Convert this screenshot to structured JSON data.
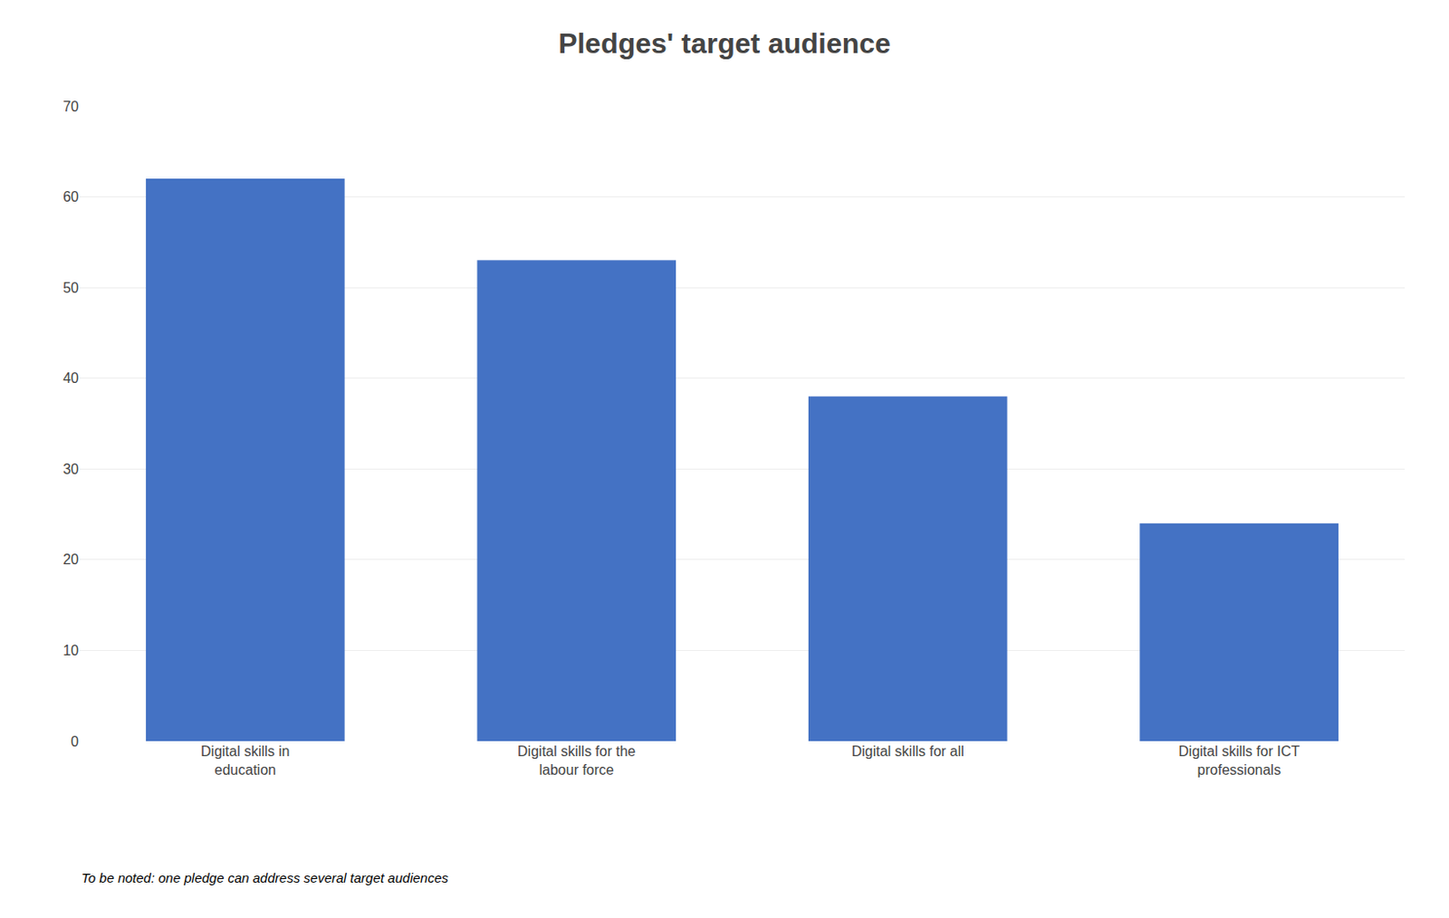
{
  "chart_data": {
    "type": "bar",
    "title": "Pledges' target audience",
    "categories": [
      "Digital skills in\neducation",
      "Digital skills for the\nlabour force",
      "Digital skills for all",
      "Digital skills for ICT\nprofessionals"
    ],
    "values": [
      62,
      53,
      38,
      24
    ],
    "color": "#4472C4",
    "ylim": [
      0,
      70
    ],
    "yticks": [
      0,
      10,
      20,
      30,
      40,
      50,
      60,
      70
    ],
    "grid": true,
    "annotations": [
      "To be noted: one pledge can address several target audiences"
    ]
  }
}
